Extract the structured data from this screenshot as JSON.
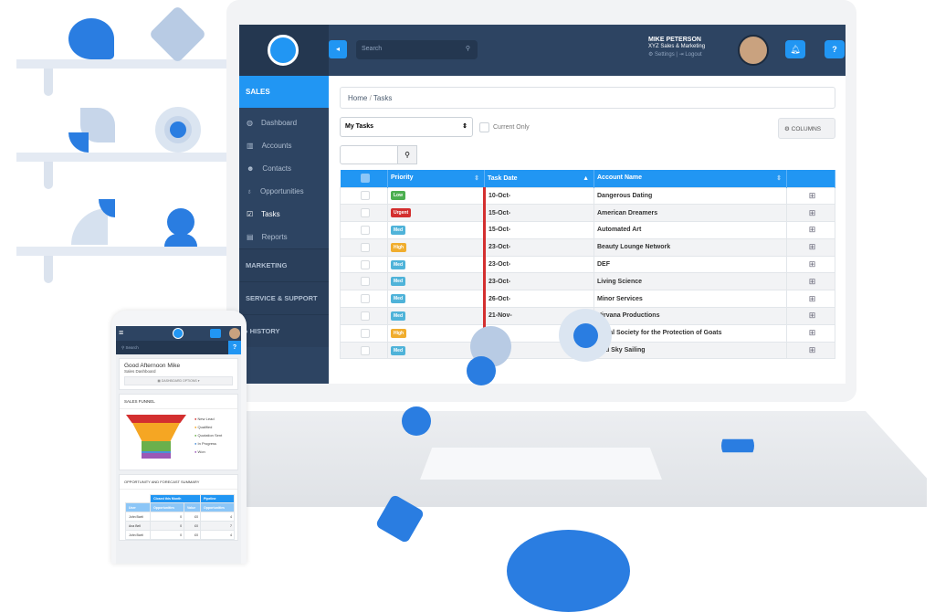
{
  "app": {
    "user_name": "MIKE PETERSON",
    "user_org": "XYZ Sales & Marketing",
    "settings_label": "Settings",
    "separator": "|",
    "logout_label": "Logout",
    "search_placeholder": "Search"
  },
  "sidebar": {
    "section": "SALES",
    "items": [
      {
        "label": "Dashboard",
        "icon": "dashboard-icon"
      },
      {
        "label": "Accounts",
        "icon": "building-icon"
      },
      {
        "label": "Contacts",
        "icon": "users-icon"
      },
      {
        "label": "Opportunities",
        "icon": "lightbulb-icon"
      },
      {
        "label": "Tasks",
        "icon": "check-square-icon"
      },
      {
        "label": "Reports",
        "icon": "report-icon"
      }
    ],
    "sections": [
      "MARKETING",
      "SERVICE & SUPPORT",
      "HISTORY"
    ]
  },
  "breadcrumb": {
    "home": "Home",
    "sep": "/",
    "current": "Tasks"
  },
  "filters": {
    "view_select": "My Tasks",
    "current_only": "Current Only",
    "columns_button": "COLUMNS"
  },
  "table": {
    "headers": [
      "Priority",
      "Task Date",
      "Account Name"
    ],
    "rows": [
      {
        "priority": "Low",
        "date": "10-Oct-",
        "account": "Dangerous Dating"
      },
      {
        "priority": "Urgent",
        "date": "15-Oct-",
        "account": "American Dreamers"
      },
      {
        "priority": "Med",
        "date": "15-Oct-",
        "account": "Automated Art"
      },
      {
        "priority": "High",
        "date": "23-Oct-",
        "account": "Beauty Lounge Network"
      },
      {
        "priority": "Med",
        "date": "23-Oct-",
        "account": "DEF"
      },
      {
        "priority": "Med",
        "date": "23-Oct-",
        "account": "Living Science"
      },
      {
        "priority": "Med",
        "date": "26-Oct-",
        "account": "Minor Services"
      },
      {
        "priority": "Med",
        "date": "21-Nov-",
        "account": "Nirvana Productions"
      },
      {
        "priority": "High",
        "date": "",
        "account": "Royal Society for the Protection of Goats"
      },
      {
        "priority": "Med",
        "date": "",
        "account": "Red Sky Sailing"
      }
    ]
  },
  "priority_colors": {
    "Low": "#4caf50",
    "Urgent": "#d32f2f",
    "Med": "#4fb3d9",
    "High": "#f0ad2e"
  },
  "colors": {
    "accent": "#2196f3",
    "navy": "#2d4462"
  },
  "phone": {
    "search": "Search",
    "greeting": "Good Afternoon Mike",
    "subtitle": "Sales Dashboard",
    "dash_options": "DASHBOARD OPTIONS ▾",
    "funnel_title": "SALES FUNNEL",
    "funnel_legend": [
      {
        "label": "New Lead",
        "color": "#d32f2f"
      },
      {
        "label": "Qualified",
        "color": "#f5a623"
      },
      {
        "label": "Quotation Sent",
        "color": "#6ab04c"
      },
      {
        "label": "In Progress",
        "color": "#4a90d9"
      },
      {
        "label": "Won",
        "color": "#9b59b6"
      }
    ],
    "summary_title": "OPPORTUNITY AND FORECAST SUMMARY",
    "group_headers": [
      "Closed this Month",
      "Pipeline"
    ],
    "col_headers": [
      "User",
      "Opportunities",
      "Value",
      "Opportunities"
    ],
    "rows": [
      [
        "John Barti",
        "0",
        "£0",
        "4"
      ],
      [
        "Ana Bell",
        "0",
        "£0",
        "7"
      ],
      [
        "John Barti",
        "0",
        "£0",
        "4"
      ]
    ]
  }
}
